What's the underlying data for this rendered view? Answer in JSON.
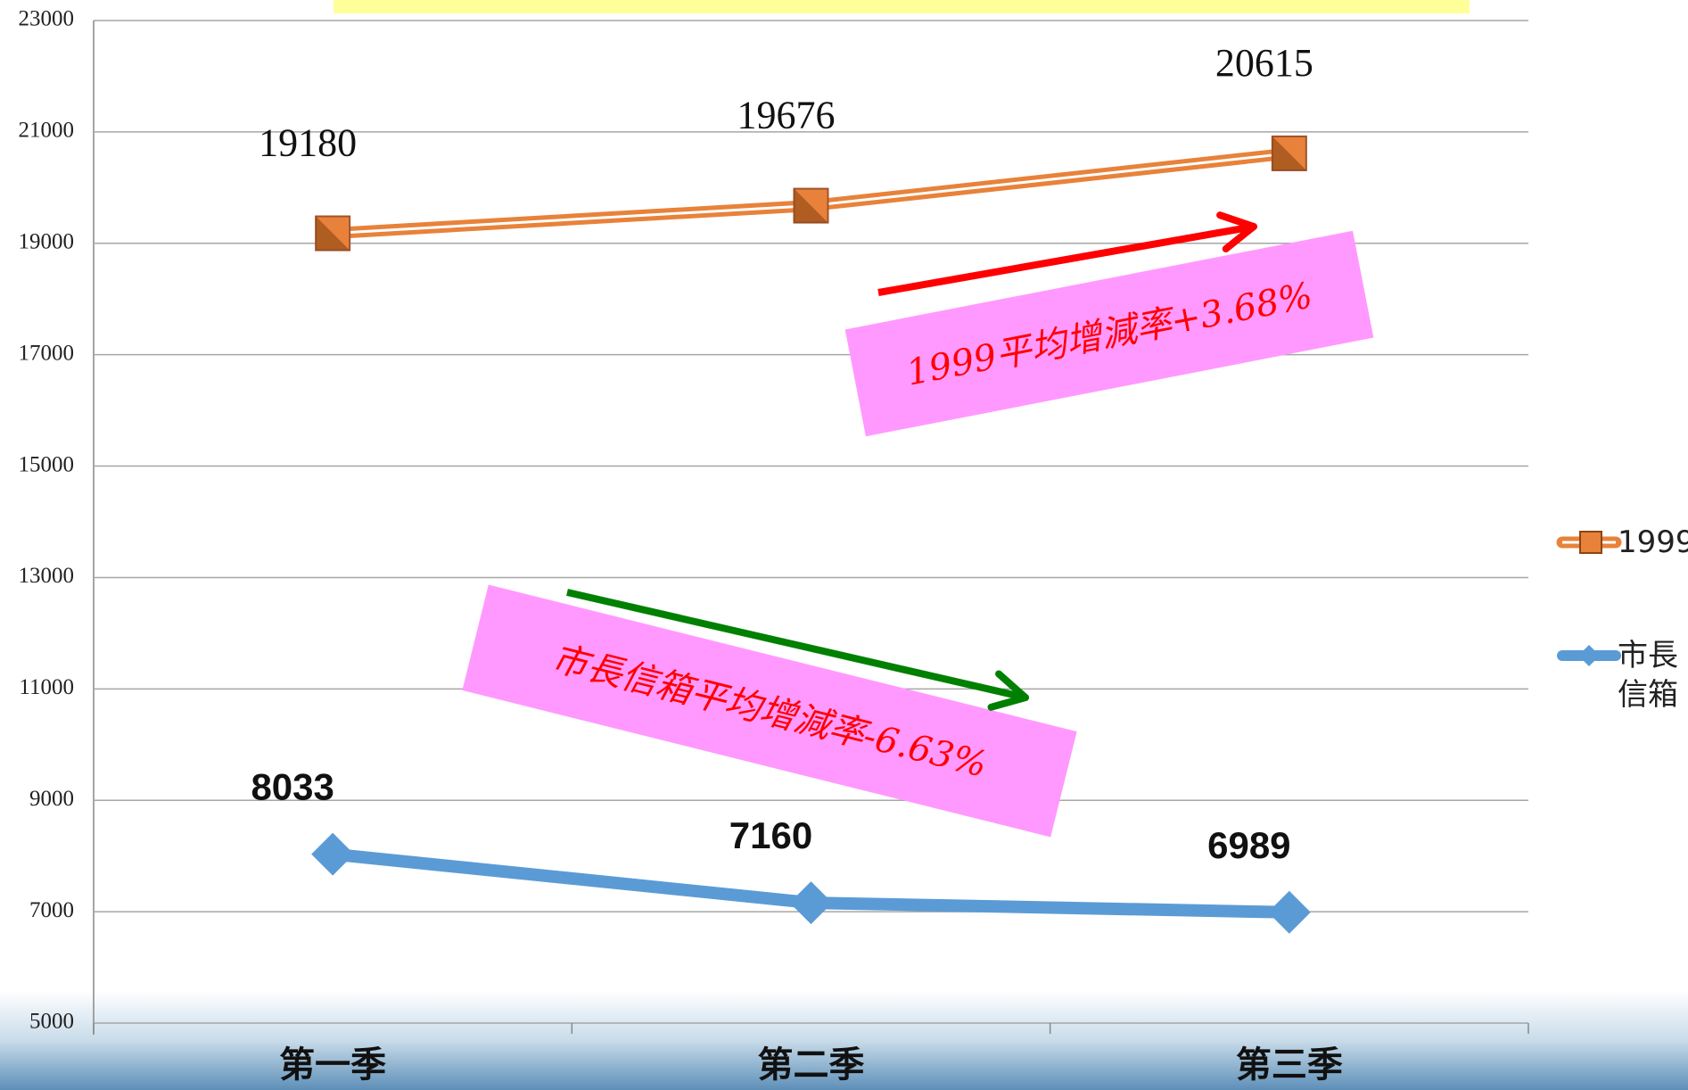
{
  "chart_data": {
    "type": "line",
    "categories": [
      "第一季",
      "第二季",
      "第三季"
    ],
    "series": [
      {
        "name": "1999",
        "color": "#e8823a",
        "values": [
          19180,
          19676,
          20615
        ]
      },
      {
        "name": "市長信箱",
        "color": "#5b9bd5",
        "values": [
          8033,
          7160,
          6989
        ]
      }
    ],
    "ylim": [
      5000,
      23000
    ],
    "yticks": [
      5000,
      7000,
      9000,
      11000,
      13000,
      15000,
      17000,
      19000,
      21000,
      23000
    ],
    "grid": true,
    "legend": "right",
    "annotations": [
      "1999平均增減率+3.68%",
      "市長信箱平均增減率-6.63%"
    ]
  }
}
